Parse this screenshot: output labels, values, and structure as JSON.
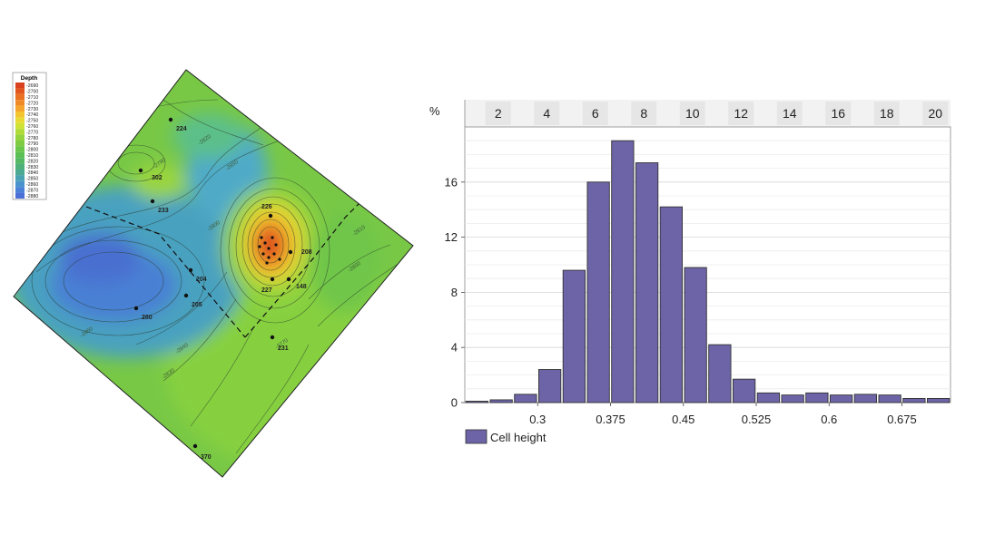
{
  "map": {
    "legend": {
      "title": "Depth",
      "entries": [
        "-2690",
        "-2700",
        "-2710",
        "-2720",
        "-2730",
        "-2740",
        "-2750",
        "-2760",
        "-2770",
        "-2780",
        "-2790",
        "-2800",
        "-2810",
        "-2820",
        "-2830",
        "-2840",
        "-2850",
        "-2860",
        "-2870",
        "-2880"
      ],
      "colors": [
        "#d8421e",
        "#e2561e",
        "#ea7022",
        "#f08a26",
        "#f5a42c",
        "#f5c431",
        "#e8da33",
        "#cfe236",
        "#b0dc3a",
        "#94d33e",
        "#7ccb43",
        "#6ac64a",
        "#5cbf55",
        "#55b864",
        "#4fb07a",
        "#4ca994",
        "#4aa1b2",
        "#4a93cd",
        "#4a81d6",
        "#4a6fd6"
      ]
    },
    "wells": [
      {
        "id": "w224",
        "label": "224"
      },
      {
        "id": "w302",
        "label": "302"
      },
      {
        "id": "w233",
        "label": "233"
      },
      {
        "id": "w204",
        "label": "204"
      },
      {
        "id": "w205",
        "label": "205"
      },
      {
        "id": "w280",
        "label": "280"
      },
      {
        "id": "w226",
        "label": "226"
      },
      {
        "id": "w208",
        "label": "208"
      },
      {
        "id": "w227",
        "label": "227"
      },
      {
        "id": "w148",
        "label": "148"
      },
      {
        "id": "w231",
        "label": "231"
      },
      {
        "id": "w370",
        "label": "370"
      }
    ],
    "contour_labels": [
      "-2820",
      "-2850",
      "-2790",
      "-2800",
      "-2840",
      "-2830",
      "-2860",
      "-2800",
      "-2810",
      "-2770"
    ]
  },
  "chart_data": {
    "type": "bar",
    "series": [
      {
        "name": "Cell height",
        "color": "#6c64a7"
      }
    ],
    "bins": [
      {
        "lower": 0.225,
        "upper": 0.25,
        "value": 0.1
      },
      {
        "lower": 0.25,
        "upper": 0.275,
        "value": 0.2
      },
      {
        "lower": 0.275,
        "upper": 0.3,
        "value": 0.6
      },
      {
        "lower": 0.3,
        "upper": 0.325,
        "value": 2.4
      },
      {
        "lower": 0.325,
        "upper": 0.35,
        "value": 9.6
      },
      {
        "lower": 0.35,
        "upper": 0.375,
        "value": 16.0
      },
      {
        "lower": 0.375,
        "upper": 0.4,
        "value": 19.0
      },
      {
        "lower": 0.4,
        "upper": 0.425,
        "value": 17.4
      },
      {
        "lower": 0.425,
        "upper": 0.45,
        "value": 14.2
      },
      {
        "lower": 0.45,
        "upper": 0.475,
        "value": 9.8
      },
      {
        "lower": 0.475,
        "upper": 0.5,
        "value": 4.2
      },
      {
        "lower": 0.5,
        "upper": 0.525,
        "value": 1.7
      },
      {
        "lower": 0.525,
        "upper": 0.55,
        "value": 0.7
      },
      {
        "lower": 0.55,
        "upper": 0.575,
        "value": 0.55
      },
      {
        "lower": 0.575,
        "upper": 0.6,
        "value": 0.7
      },
      {
        "lower": 0.6,
        "upper": 0.625,
        "value": 0.55
      },
      {
        "lower": 0.625,
        "upper": 0.65,
        "value": 0.6
      },
      {
        "lower": 0.65,
        "upper": 0.675,
        "value": 0.55
      },
      {
        "lower": 0.675,
        "upper": 0.7,
        "value": 0.3
      },
      {
        "lower": 0.7,
        "upper": 0.725,
        "value": 0.3
      }
    ],
    "ylabel": "%",
    "ylim": [
      0,
      20
    ],
    "xlim": [
      0.225,
      0.725
    ],
    "y_ticks": [
      0,
      4,
      8,
      12,
      16
    ],
    "x_ticks": [
      0.3,
      0.375,
      0.45,
      0.525,
      0.6,
      0.675
    ],
    "x_tick_labels": [
      "0.3",
      "0.375",
      "0.45",
      "0.525",
      "0.6",
      "0.675"
    ],
    "top_axis_labels": [
      "2",
      "4",
      "6",
      "8",
      "10",
      "12",
      "14",
      "16",
      "18",
      "20"
    ],
    "legend_label": "Cell height",
    "legend_position": "bottom-left",
    "grid": true
  }
}
